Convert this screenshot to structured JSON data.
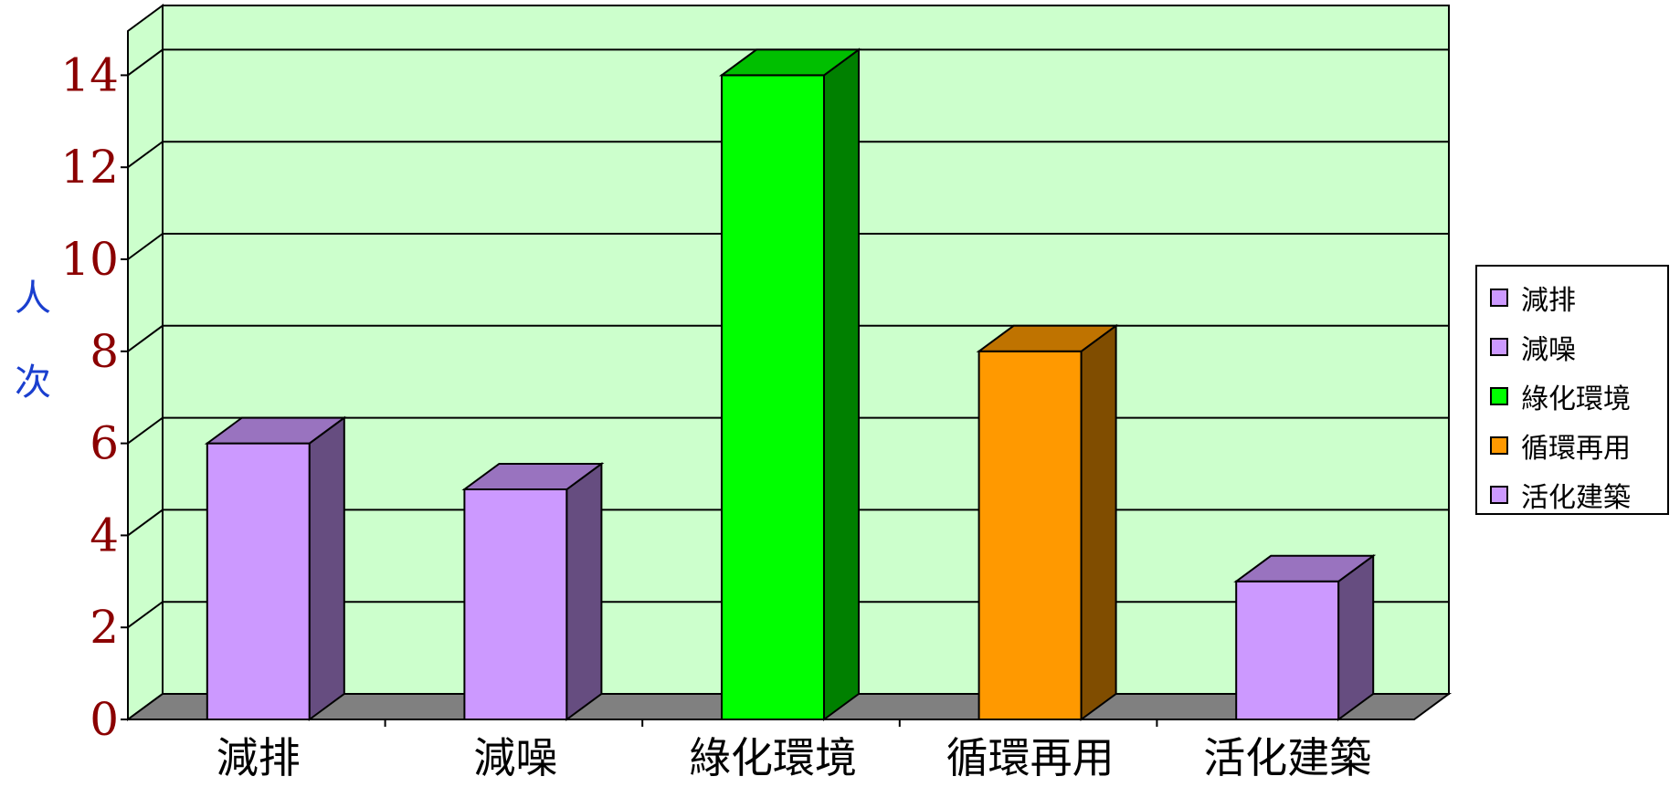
{
  "chart_data": {
    "type": "bar",
    "style": "3d",
    "categories": [
      "減排",
      "減噪",
      "綠化環境",
      "循環再用",
      "活化建築"
    ],
    "values": [
      6,
      5,
      14,
      8,
      3
    ],
    "colors": [
      "#cc99ff",
      "#cc99ff",
      "#00ff00",
      "#ff9900",
      "#cc99ff"
    ],
    "ylabel": "人次",
    "ylim": [
      0,
      14
    ],
    "yticks": [
      0,
      2,
      4,
      6,
      8,
      10,
      12,
      14
    ],
    "grid": true,
    "legend_position": "right",
    "legend": [
      "減排",
      "減噪",
      "綠化環境",
      "循環再用",
      "活化建築"
    ],
    "wall_color": "#ccffcc",
    "floor_color": "#808080",
    "tick_label_color": "#8b0000",
    "ylabel_color": "#1a3fcf"
  }
}
